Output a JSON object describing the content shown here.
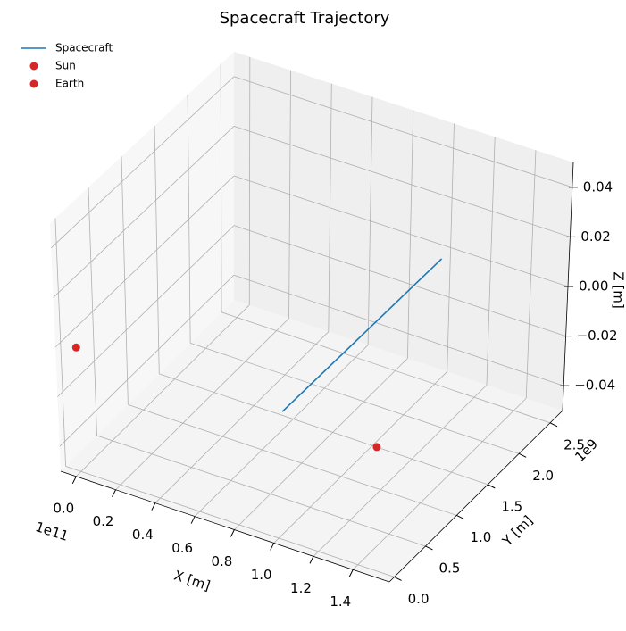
{
  "chart_data": {
    "type": "line3d",
    "title": "Spacecraft Trajectory",
    "xlabel": "X [m]",
    "ylabel": "Y [m]",
    "zlabel": "Z [m]",
    "x_offset": "1e11",
    "y_offset": "1e9",
    "xlim": [
      -7800000000,
      158400000000
    ],
    "ylim": [
      -80000000,
      2700000000
    ],
    "zlim": [
      -0.05,
      0.05
    ],
    "xticks": [
      {
        "value": 0,
        "label": "0.0"
      },
      {
        "value": 20000000000,
        "label": "0.2"
      },
      {
        "value": 40000000000,
        "label": "0.4"
      },
      {
        "value": 60000000000,
        "label": "0.6"
      },
      {
        "value": 80000000000,
        "label": "0.8"
      },
      {
        "value": 100000000000,
        "label": "1.0"
      },
      {
        "value": 120000000000,
        "label": "1.2"
      },
      {
        "value": 140000000000,
        "label": "1.4"
      }
    ],
    "yticks": [
      {
        "value": 0,
        "label": "0.0"
      },
      {
        "value": 500000000,
        "label": "0.5"
      },
      {
        "value": 1000000000,
        "label": "1.0"
      },
      {
        "value": 1500000000,
        "label": "1.5"
      },
      {
        "value": 2000000000,
        "label": "2.0"
      },
      {
        "value": 2500000000,
        "label": "2.5"
      }
    ],
    "zticks": [
      {
        "value": -0.04,
        "label": "−0.04"
      },
      {
        "value": -0.02,
        "label": "−0.02"
      },
      {
        "value": 0,
        "label": "0.00"
      },
      {
        "value": 0.02,
        "label": "0.02"
      },
      {
        "value": 0.04,
        "label": "0.04"
      }
    ],
    "grid": true,
    "legend": "upper left",
    "series": [
      {
        "name": "Spacecraft",
        "color": "#1f77b4",
        "style": "line",
        "x": [
          101000000000,
          101000000000
        ],
        "y": [
          50000000,
          2530000000
        ],
        "z": [
          0,
          0
        ]
      },
      {
        "name": "Sun",
        "color": "#d62728",
        "style": "marker",
        "x": [
          0
        ],
        "y": [
          0
        ],
        "z": [
          0
        ]
      },
      {
        "name": "Earth",
        "color": "#d62728",
        "style": "marker",
        "x": [
          149600000000
        ],
        "y": [
          0
        ],
        "z": [
          0
        ]
      }
    ]
  }
}
